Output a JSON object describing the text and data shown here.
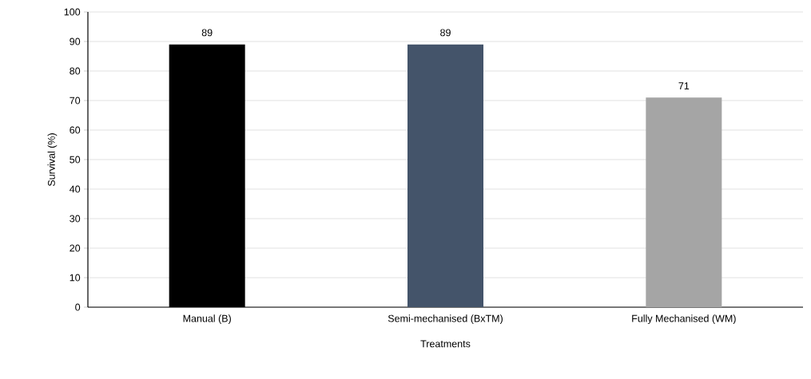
{
  "chart_data": {
    "type": "bar",
    "categories": [
      "Manual (B)",
      "Semi-mechanised (BxTM)",
      "Fully Mechanised (WM)"
    ],
    "values": [
      89,
      89,
      71
    ],
    "colors": [
      "#000000",
      "#44546a",
      "#a5a5a5"
    ],
    "xlabel": "Treatments",
    "ylabel": "Survival (%)",
    "ylim": [
      0,
      100
    ],
    "yticks": [
      0,
      10,
      20,
      30,
      40,
      50,
      60,
      70,
      80,
      90,
      100
    ],
    "grid": "y",
    "data_labels": true
  }
}
